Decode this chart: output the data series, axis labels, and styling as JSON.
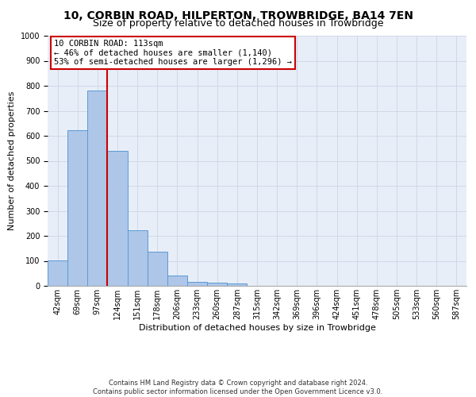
{
  "title": "10, CORBIN ROAD, HILPERTON, TROWBRIDGE, BA14 7EN",
  "subtitle": "Size of property relative to detached houses in Trowbridge",
  "xlabel": "Distribution of detached houses by size in Trowbridge",
  "ylabel": "Number of detached properties",
  "bar_color": "#aec6e8",
  "bar_edge_color": "#5b9bd5",
  "grid_color": "#d0d8e8",
  "background_color": "#e8eef8",
  "annotation_box_color": "#cc0000",
  "annotation_line_color": "#cc0000",
  "annotation_text": "10 CORBIN ROAD: 113sqm\n← 46% of detached houses are smaller (1,140)\n53% of semi-detached houses are larger (1,296) →",
  "marker_bin": 2,
  "categories": [
    "42sqm",
    "69sqm",
    "97sqm",
    "124sqm",
    "151sqm",
    "178sqm",
    "206sqm",
    "233sqm",
    "260sqm",
    "287sqm",
    "315sqm",
    "342sqm",
    "369sqm",
    "396sqm",
    "424sqm",
    "451sqm",
    "478sqm",
    "505sqm",
    "533sqm",
    "560sqm",
    "587sqm"
  ],
  "values": [
    103,
    623,
    782,
    540,
    221,
    135,
    42,
    15,
    12,
    10,
    0,
    0,
    0,
    0,
    0,
    0,
    0,
    0,
    0,
    0,
    0
  ],
  "ylim": [
    0,
    1000
  ],
  "yticks": [
    0,
    100,
    200,
    300,
    400,
    500,
    600,
    700,
    800,
    900,
    1000
  ],
  "footer_text": "Contains HM Land Registry data © Crown copyright and database right 2024.\nContains public sector information licensed under the Open Government Licence v3.0.",
  "title_fontsize": 10,
  "subtitle_fontsize": 9,
  "xlabel_fontsize": 8,
  "ylabel_fontsize": 8,
  "tick_fontsize": 7,
  "annotation_fontsize": 7.5,
  "footer_fontsize": 6
}
